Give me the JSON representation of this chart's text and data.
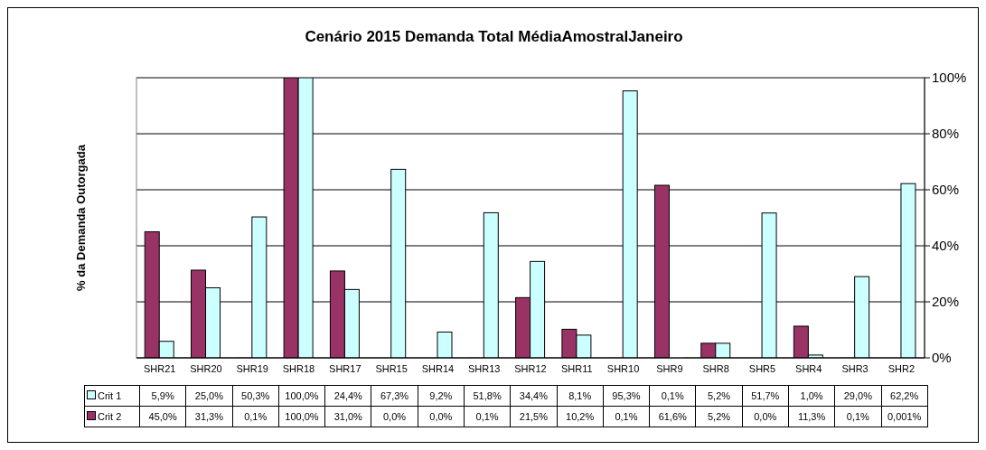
{
  "chart_data": {
    "type": "bar",
    "title": "Cenário 2015 Demanda Total MédiaAmostralJaneiro",
    "ylabel": "% da Demanda Outorgada",
    "categories": [
      "SHR21",
      "SHR20",
      "SHR19",
      "SHR18",
      "SHR17",
      "SHR15",
      "SHR14",
      "SHR13",
      "SHR12",
      "SHR11",
      "SHR10",
      "SHR9",
      "SHR8",
      "SHR5",
      "SHR4",
      "SHR3",
      "SHR2"
    ],
    "series": [
      {
        "name": "Crit 2",
        "color": "#993366",
        "values": [
          45.0,
          31.3,
          0.1,
          100.0,
          31.0,
          0.0,
          0.0,
          0.1,
          21.5,
          10.2,
          0.1,
          61.6,
          5.2,
          0.0,
          11.3,
          0.1,
          0.001
        ],
        "value_labels": [
          "45,0%",
          "31,3%",
          "0,1%",
          "100,0%",
          "31,0%",
          "0,0%",
          "0,0%",
          "0,1%",
          "21,5%",
          "10,2%",
          "0,1%",
          "61,6%",
          "5,2%",
          "0,0%",
          "11,3%",
          "0,1%",
          "0,001%"
        ]
      },
      {
        "name": "Crit 1",
        "color": "#ccffff",
        "values": [
          5.9,
          25.0,
          50.3,
          100.0,
          24.4,
          67.3,
          9.2,
          51.8,
          34.4,
          8.1,
          95.3,
          0.1,
          5.2,
          51.7,
          1.0,
          29.0,
          62.2
        ],
        "value_labels": [
          "5,9%",
          "25,0%",
          "50,3%",
          "100,0%",
          "24,4%",
          "67,3%",
          "9,2%",
          "51,8%",
          "34,4%",
          "8,1%",
          "95,3%",
          "0,1%",
          "5,2%",
          "51,7%",
          "1,0%",
          "29,0%",
          "62,2%"
        ]
      }
    ],
    "ylim": [
      0,
      100
    ],
    "yticks": [
      {
        "value": 0,
        "label": "0%"
      },
      {
        "value": 20,
        "label": "20%"
      },
      {
        "value": 40,
        "label": "40%"
      },
      {
        "value": 60,
        "label": "60%"
      },
      {
        "value": 80,
        "label": "80%"
      },
      {
        "value": 100,
        "label": "100%"
      }
    ],
    "grid": "y",
    "legend": "bottom left"
  }
}
